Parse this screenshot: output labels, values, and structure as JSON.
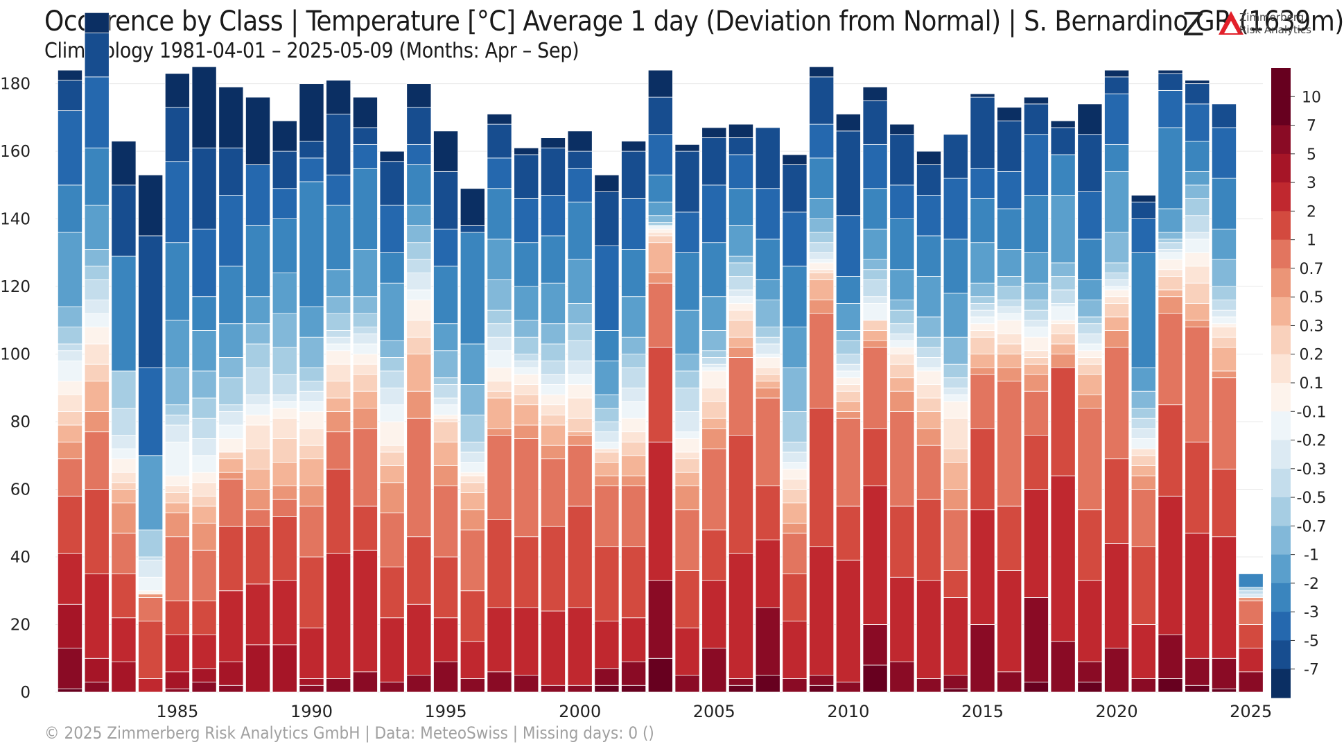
{
  "title": "Occurence by Class | Temperature [°C] Average 1 day (Deviation from Normal) | S. Bernardino GR (1639m)",
  "subtitle": "Climatology 1981-04-01 – 2025-05-09 (Months: Apr – Sep)",
  "logo": {
    "mark": "Z",
    "line1": "Zimmerberg",
    "line2": "Risk Analytics"
  },
  "footer": "©  2025 Zimmerberg Risk Analytics GmbH | Data: MeteoSwiss | Missing days: 0 ()",
  "chart_data": {
    "type": "bar",
    "stacked": true,
    "xlabel": "",
    "ylabel": "",
    "ylim": [
      0,
      183
    ],
    "yticks": [
      0,
      20,
      40,
      60,
      80,
      100,
      120,
      140,
      160,
      180
    ],
    "xticks": [
      1985,
      1990,
      1995,
      2000,
      2005,
      2010,
      2015,
      2020,
      2025
    ],
    "grid": true,
    "legend": "colorbar-right",
    "categories": [
      1981,
      1982,
      1983,
      1984,
      1985,
      1986,
      1987,
      1988,
      1989,
      1990,
      1991,
      1992,
      1993,
      1994,
      1995,
      1996,
      1997,
      1998,
      1999,
      2000,
      2001,
      2002,
      2003,
      2004,
      2005,
      2006,
      2007,
      2008,
      2009,
      2010,
      2011,
      2012,
      2013,
      2014,
      2015,
      2016,
      2017,
      2018,
      2019,
      2020,
      2021,
      2022,
      2023,
      2024,
      2025
    ],
    "class_labels": [
      "10",
      "7",
      "5",
      "3",
      "2",
      "1",
      "0.7",
      "0.5",
      "0.3",
      "0.2",
      "0.1",
      "-0.1",
      "-0.2",
      "-0.3",
      "-0.5",
      "-0.7",
      "-1",
      "-2",
      "-3",
      "-5",
      "-7"
    ],
    "class_colors": [
      "#67001f",
      "#8a0b25",
      "#a61527",
      "#c0282f",
      "#d34a3f",
      "#e2755f",
      "#eb9577",
      "#f4b497",
      "#f9d1bc",
      "#fce4d6",
      "#fdf3ec",
      "#eef5f9",
      "#dceaf3",
      "#c4ddec",
      "#a6cde3",
      "#82b8d9",
      "#5a9fcc",
      "#3a85be",
      "#2568ae",
      "#174d8f",
      "#0b2f63"
    ],
    "values": [
      [
        1,
        12,
        13,
        15,
        17,
        11,
        5,
        5,
        4,
        5,
        4,
        6,
        3,
        2,
        5,
        6,
        22,
        14,
        22,
        9,
        3
      ],
      [
        0,
        3,
        7,
        25,
        25,
        17,
        6,
        9,
        5,
        6,
        5,
        4,
        4,
        6,
        4,
        5,
        13,
        17,
        21,
        13,
        6
      ],
      [
        0,
        0,
        9,
        13,
        13,
        12,
        9,
        4,
        2,
        3,
        4,
        3,
        4,
        8,
        11,
        0,
        0,
        34,
        0,
        21,
        13
      ],
      [
        0,
        0,
        0,
        4,
        17,
        7,
        1,
        0,
        0,
        0,
        1,
        4,
        5,
        1,
        8,
        0,
        22,
        0,
        26,
        39,
        18
      ],
      [
        0,
        1,
        5,
        11,
        10,
        19,
        7,
        3,
        3,
        2,
        3,
        10,
        5,
        3,
        3,
        11,
        14,
        23,
        24,
        16,
        10
      ],
      [
        0,
        3,
        4,
        10,
        10,
        15,
        8,
        5,
        3,
        4,
        3,
        5,
        5,
        6,
        6,
        8,
        12,
        10,
        20,
        24,
        24
      ],
      [
        0,
        2,
        7,
        21,
        19,
        14,
        2,
        4,
        2,
        0,
        4,
        4,
        4,
        2,
        8,
        6,
        10,
        17,
        21,
        14,
        18
      ],
      [
        0,
        0,
        14,
        18,
        17,
        5,
        6,
        6,
        6,
        7,
        3,
        3,
        3,
        8,
        7,
        6,
        8,
        21,
        18,
        0,
        20
      ],
      [
        0,
        0,
        14,
        19,
        19,
        5,
        4,
        7,
        7,
        6,
        3,
        2,
        2,
        6,
        8,
        10,
        12,
        16,
        9,
        11,
        9
      ],
      [
        0,
        2,
        2,
        15,
        21,
        15,
        6,
        8,
        4,
        5,
        5,
        3,
        3,
        3,
        4,
        9,
        9,
        37,
        7,
        5,
        17
      ],
      [
        0,
        4,
        0,
        37,
        25,
        11,
        6,
        4,
        5,
        5,
        4,
        2,
        2,
        2,
        5,
        5,
        8,
        19,
        9,
        18,
        10
      ],
      [
        0,
        6,
        0,
        36,
        13,
        23,
        6,
        5,
        5,
        3,
        3,
        3,
        3,
        2,
        4,
        5,
        14,
        24,
        7,
        5,
        9
      ],
      [
        0,
        3,
        0,
        19,
        15,
        16,
        9,
        5,
        4,
        2,
        7,
        5,
        5,
        5,
        4,
        5,
        17,
        9,
        14,
        13,
        3
      ],
      [
        0,
        5,
        0,
        21,
        20,
        35,
        8,
        11,
        5,
        5,
        6,
        3,
        5,
        4,
        5,
        5,
        6,
        12,
        6,
        11,
        7
      ],
      [
        0,
        9,
        0,
        13,
        18,
        21,
        6,
        7,
        6,
        1,
        1,
        3,
        2,
        4,
        2,
        8,
        8,
        17,
        11,
        17,
        12
      ],
      [
        0,
        4,
        0,
        11,
        15,
        18,
        6,
        5,
        3,
        2,
        1,
        3,
        3,
        3,
        8,
        9,
        12,
        33,
        0,
        2,
        11
      ],
      [
        0,
        6,
        0,
        19,
        26,
        25,
        2,
        9,
        2,
        3,
        4,
        5,
        4,
        4,
        4,
        9,
        12,
        15,
        9,
        10,
        3
      ],
      [
        0,
        5,
        0,
        20,
        21,
        29,
        4,
        6,
        3,
        3,
        3,
        2,
        2,
        2,
        5,
        5,
        10,
        13,
        13,
        13,
        2
      ],
      [
        0,
        2,
        0,
        22,
        25,
        20,
        4,
        6,
        3,
        3,
        3,
        3,
        3,
        4,
        5,
        6,
        12,
        14,
        12,
        14,
        3
      ],
      [
        0,
        2,
        0,
        23,
        30,
        18,
        3,
        1,
        4,
        6,
        4,
        3,
        4,
        6,
        5,
        6,
        13,
        17,
        10,
        5,
        6
      ],
      [
        2,
        5,
        0,
        14,
        22,
        18,
        3,
        4,
        3,
        1,
        0,
        2,
        3,
        3,
        4,
        4,
        10,
        9,
        25,
        16,
        5
      ],
      [
        2,
        7,
        0,
        13,
        21,
        18,
        3,
        6,
        4,
        3,
        4,
        5,
        4,
        6,
        4,
        5,
        12,
        14,
        15,
        14,
        3
      ],
      [
        10,
        23,
        0,
        41,
        28,
        19,
        3,
        9,
        2,
        1,
        1,
        1,
        0,
        0,
        1,
        2,
        4,
        8,
        12,
        11,
        8
      ],
      [
        0,
        5,
        0,
        14,
        17,
        18,
        7,
        4,
        4,
        2,
        4,
        2,
        6,
        7,
        5,
        5,
        13,
        17,
        12,
        18,
        2
      ],
      [
        0,
        13,
        0,
        20,
        15,
        24,
        6,
        3,
        5,
        4,
        5,
        1,
        1,
        2,
        2,
        6,
        10,
        16,
        17,
        14,
        3
      ],
      [
        2,
        2,
        0,
        37,
        35,
        23,
        3,
        3,
        5,
        3,
        2,
        2,
        2,
        4,
        4,
        2,
        9,
        11,
        10,
        5,
        4
      ],
      [
        5,
        20,
        0,
        20,
        16,
        26,
        3,
        2,
        2,
        2,
        3,
        1,
        3,
        2,
        3,
        8,
        6,
        12,
        15,
        18,
        0
      ],
      [
        0,
        4,
        0,
        17,
        14,
        12,
        3,
        6,
        4,
        3,
        3,
        2,
        3,
        3,
        9,
        13,
        12,
        18,
        16,
        14,
        3
      ],
      [
        2,
        3,
        0,
        38,
        41,
        28,
        4,
        6,
        2,
        1,
        2,
        1,
        2,
        3,
        3,
        4,
        6,
        12,
        10,
        14,
        3
      ],
      [
        0,
        3,
        0,
        36,
        16,
        26,
        2,
        3,
        3,
        2,
        2,
        2,
        2,
        3,
        4,
        3,
        8,
        8,
        18,
        25,
        5
      ],
      [
        8,
        12,
        0,
        41,
        17,
        24,
        2,
        3,
        3,
        0,
        0,
        5,
        2,
        5,
        3,
        3,
        9,
        12,
        13,
        13,
        4
      ],
      [
        0,
        9,
        0,
        25,
        21,
        28,
        6,
        4,
        4,
        3,
        2,
        2,
        2,
        3,
        4,
        3,
        9,
        15,
        10,
        15,
        3
      ],
      [
        0,
        4,
        0,
        29,
        24,
        16,
        5,
        5,
        4,
        4,
        4,
        1,
        3,
        3,
        3,
        6,
        12,
        12,
        12,
        9,
        4
      ],
      [
        1,
        4,
        0,
        23,
        8,
        18,
        6,
        8,
        4,
        9,
        5,
        2,
        2,
        3,
        4,
        8,
        13,
        16,
        18,
        13,
        0
      ],
      [
        0,
        20,
        0,
        34,
        24,
        16,
        2,
        4,
        5,
        2,
        2,
        2,
        2,
        2,
        2,
        4,
        12,
        13,
        9,
        21,
        1
      ],
      [
        0,
        6,
        0,
        30,
        19,
        37,
        4,
        4,
        3,
        3,
        4,
        2,
        2,
        2,
        4,
        3,
        8,
        12,
        11,
        15,
        4
      ],
      [
        3,
        25,
        0,
        32,
        16,
        13,
        5,
        3,
        2,
        2,
        4,
        3,
        2,
        3,
        3,
        5,
        9,
        17,
        18,
        9,
        2
      ],
      [
        0,
        15,
        0,
        49,
        32,
        0,
        4,
        3,
        3,
        3,
        1,
        4,
        1,
        4,
        4,
        4,
        20,
        12,
        0,
        8,
        2
      ],
      [
        3,
        6,
        0,
        24,
        21,
        30,
        4,
        6,
        3,
        2,
        2,
        2,
        3,
        3,
        2,
        5,
        6,
        12,
        14,
        17,
        9
      ],
      [
        0,
        13,
        0,
        31,
        25,
        33,
        5,
        4,
        4,
        2,
        2,
        1,
        2,
        2,
        3,
        9,
        18,
        8,
        15,
        5,
        2
      ],
      [
        0,
        4,
        0,
        16,
        23,
        17,
        4,
        3,
        3,
        2,
        0,
        3,
        3,
        3,
        3,
        5,
        7,
        34,
        10,
        5,
        2
      ],
      [
        4,
        13,
        0,
        41,
        27,
        27,
        5,
        2,
        4,
        2,
        3,
        2,
        1,
        2,
        1,
        2,
        7,
        24,
        11,
        5,
        1
      ],
      [
        2,
        8,
        0,
        37,
        27,
        34,
        2,
        5,
        6,
        5,
        4,
        4,
        2,
        5,
        5,
        4,
        4,
        9,
        11,
        6,
        1
      ],
      [
        1,
        9,
        0,
        36,
        20,
        27,
        2,
        7,
        3,
        3,
        1,
        2,
        2,
        3,
        4,
        8,
        9,
        15,
        15,
        7,
        0
      ],
      [
        0,
        6,
        0,
        7,
        7,
        7,
        1,
        0,
        0,
        0,
        0,
        0,
        1,
        1,
        1,
        0,
        0,
        4,
        0,
        0,
        0
      ]
    ]
  }
}
